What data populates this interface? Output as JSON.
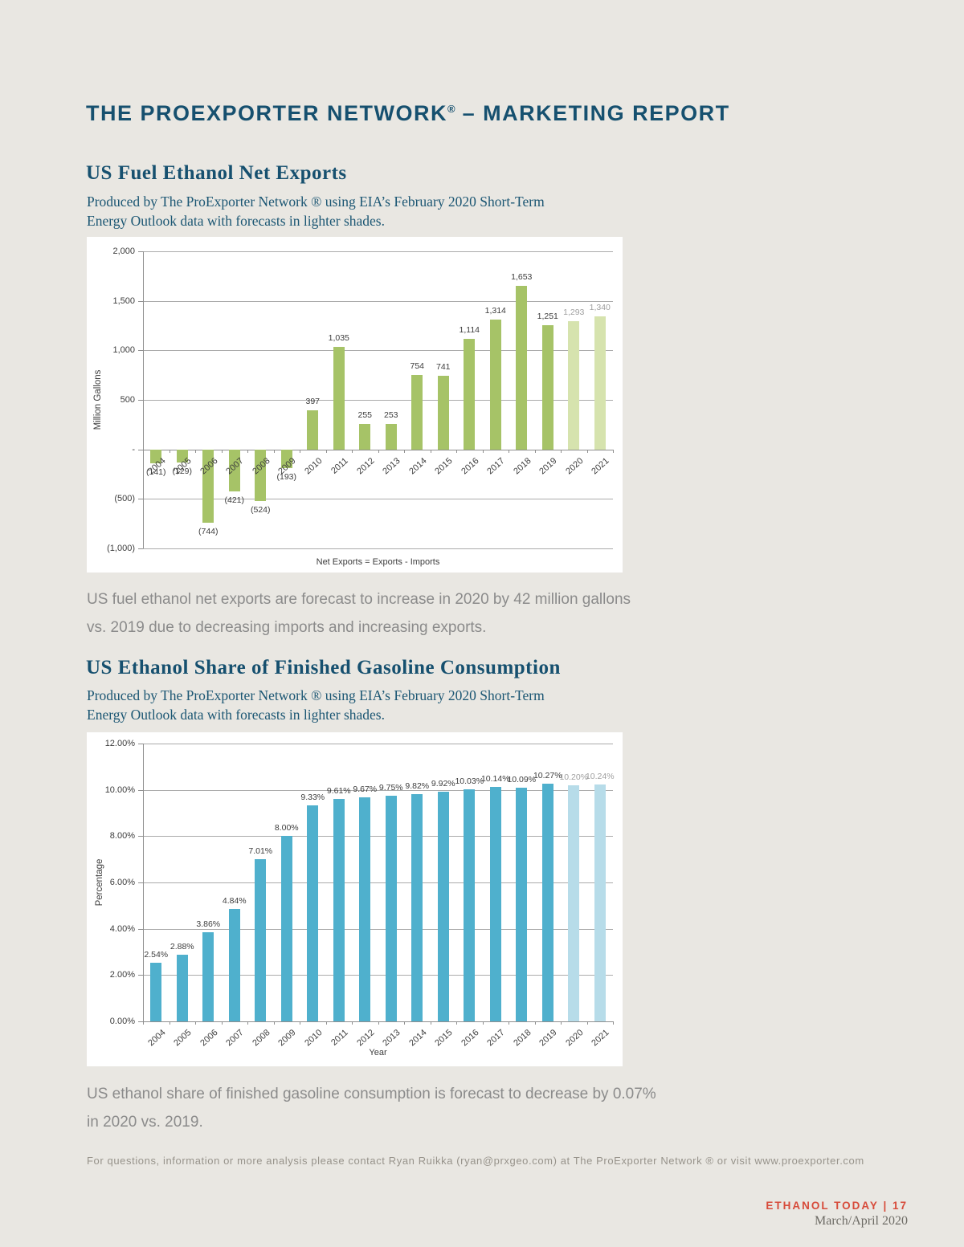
{
  "header": {
    "title_name": "THE PROEXPORTER NETWORK",
    "title_reg": "®",
    "title_rest": " – MARKETING REPORT"
  },
  "sections": [
    {
      "heading": "US Fuel Ethanol Net Exports",
      "subtitle_line1": "Produced by The ProExporter Network ® using EIA’s February 2020 Short-Term",
      "subtitle_line2": "Energy Outlook data with forecasts in lighter shades.",
      "body_line1": "US fuel ethanol net exports are forecast to increase in 2020 by 42 million gallons",
      "body_line2": "vs. 2019 due to decreasing imports and increasing exports."
    },
    {
      "heading": "US Ethanol Share of Finished Gasoline Consumption",
      "subtitle_line1": "Produced by The ProExporter Network ® using EIA’s February 2020 Short-Term",
      "subtitle_line2": "Energy Outlook data with forecasts in lighter shades.",
      "body_line1": "US ethanol share of finished gasoline consumption is forecast to decrease by 0.07%",
      "body_line2": "in 2020 vs. 2019."
    }
  ],
  "chart_data": [
    {
      "type": "bar",
      "title": "US Fuel Ethanol Net Exports",
      "categories": [
        "2004",
        "2005",
        "2006",
        "2007",
        "2008",
        "2009",
        "2010",
        "2011",
        "2012",
        "2013",
        "2014",
        "2015",
        "2016",
        "2017",
        "2018",
        "2019",
        "2020",
        "2021"
      ],
      "values": [
        -141,
        -129,
        -744,
        -421,
        -524,
        -193,
        397,
        1035,
        255,
        253,
        754,
        741,
        1114,
        1314,
        1653,
        1251,
        1293,
        1340
      ],
      "value_labels": [
        "(141)",
        "(129)",
        "(744)",
        "(421)",
        "(524)",
        "(193)",
        "397",
        "1,035",
        "255",
        "253",
        "754",
        "741",
        "1,114",
        "1,314",
        "1,653",
        "1,251",
        "1,293",
        "1,340"
      ],
      "forecast_start_index": 16,
      "ylabel": "Million Gallons",
      "xlabel": "Net Exports = Exports - Imports",
      "ylim": [
        -1000,
        2000
      ],
      "yticks": [
        {
          "v": 2000,
          "label": "2,000"
        },
        {
          "v": 1500,
          "label": "1,500"
        },
        {
          "v": 1000,
          "label": "1,000"
        },
        {
          "v": 500,
          "label": "500"
        },
        {
          "v": 0,
          "label": "-"
        },
        {
          "v": -500,
          "label": "(500)"
        },
        {
          "v": -1000,
          "label": "(1,000)"
        }
      ],
      "grid": true,
      "legend": "none",
      "colors": {
        "bar": "#a6c367",
        "forecast_bar": "#d6e3ae",
        "label": "#3c3c3c",
        "forecast_label": "#9f9f9f"
      }
    },
    {
      "type": "bar",
      "title": "US Ethanol Share of Finished Gasoline Consumption",
      "categories": [
        "2004",
        "2005",
        "2006",
        "2007",
        "2008",
        "2009",
        "2010",
        "2011",
        "2012",
        "2013",
        "2014",
        "2015",
        "2016",
        "2017",
        "2018",
        "2019",
        "2020",
        "2021"
      ],
      "values": [
        2.54,
        2.88,
        3.86,
        4.84,
        7.01,
        8.0,
        9.33,
        9.61,
        9.67,
        9.75,
        9.82,
        9.92,
        10.03,
        10.14,
        10.09,
        10.27,
        10.2,
        10.24
      ],
      "value_labels": [
        "2.54%",
        "2.88%",
        "3.86%",
        "4.84%",
        "7.01%",
        "8.00%",
        "9.33%",
        "9.61%",
        "9.67%",
        "9.75%",
        "9.82%",
        "9.92%",
        "10.03%",
        "10.14%",
        "10.09%",
        "10.27%",
        "10.20%",
        "10.24%"
      ],
      "forecast_start_index": 16,
      "ylabel": "Percentage",
      "xlabel": "Year",
      "ylim": [
        0,
        12
      ],
      "yticks": [
        {
          "v": 12,
          "label": "12.00%"
        },
        {
          "v": 10,
          "label": "10.00%"
        },
        {
          "v": 8,
          "label": "8.00%"
        },
        {
          "v": 6,
          "label": "6.00%"
        },
        {
          "v": 4,
          "label": "4.00%"
        },
        {
          "v": 2,
          "label": "2.00%"
        },
        {
          "v": 0,
          "label": "0.00%"
        }
      ],
      "grid": true,
      "legend": "none",
      "colors": {
        "bar": "#4fb0cd",
        "forecast_bar": "#b7dce9",
        "label": "#3c3c3c",
        "forecast_label": "#9f9f9f"
      }
    }
  ],
  "footer": {
    "contact": "For questions, information or more analysis please contact Ryan Ruikka (ryan@prxgeo.com) at The ProExporter Network ® or visit www.proexporter.com",
    "magazine": "ETHANOL TODAY | 17",
    "issue": "March/April 2020"
  }
}
